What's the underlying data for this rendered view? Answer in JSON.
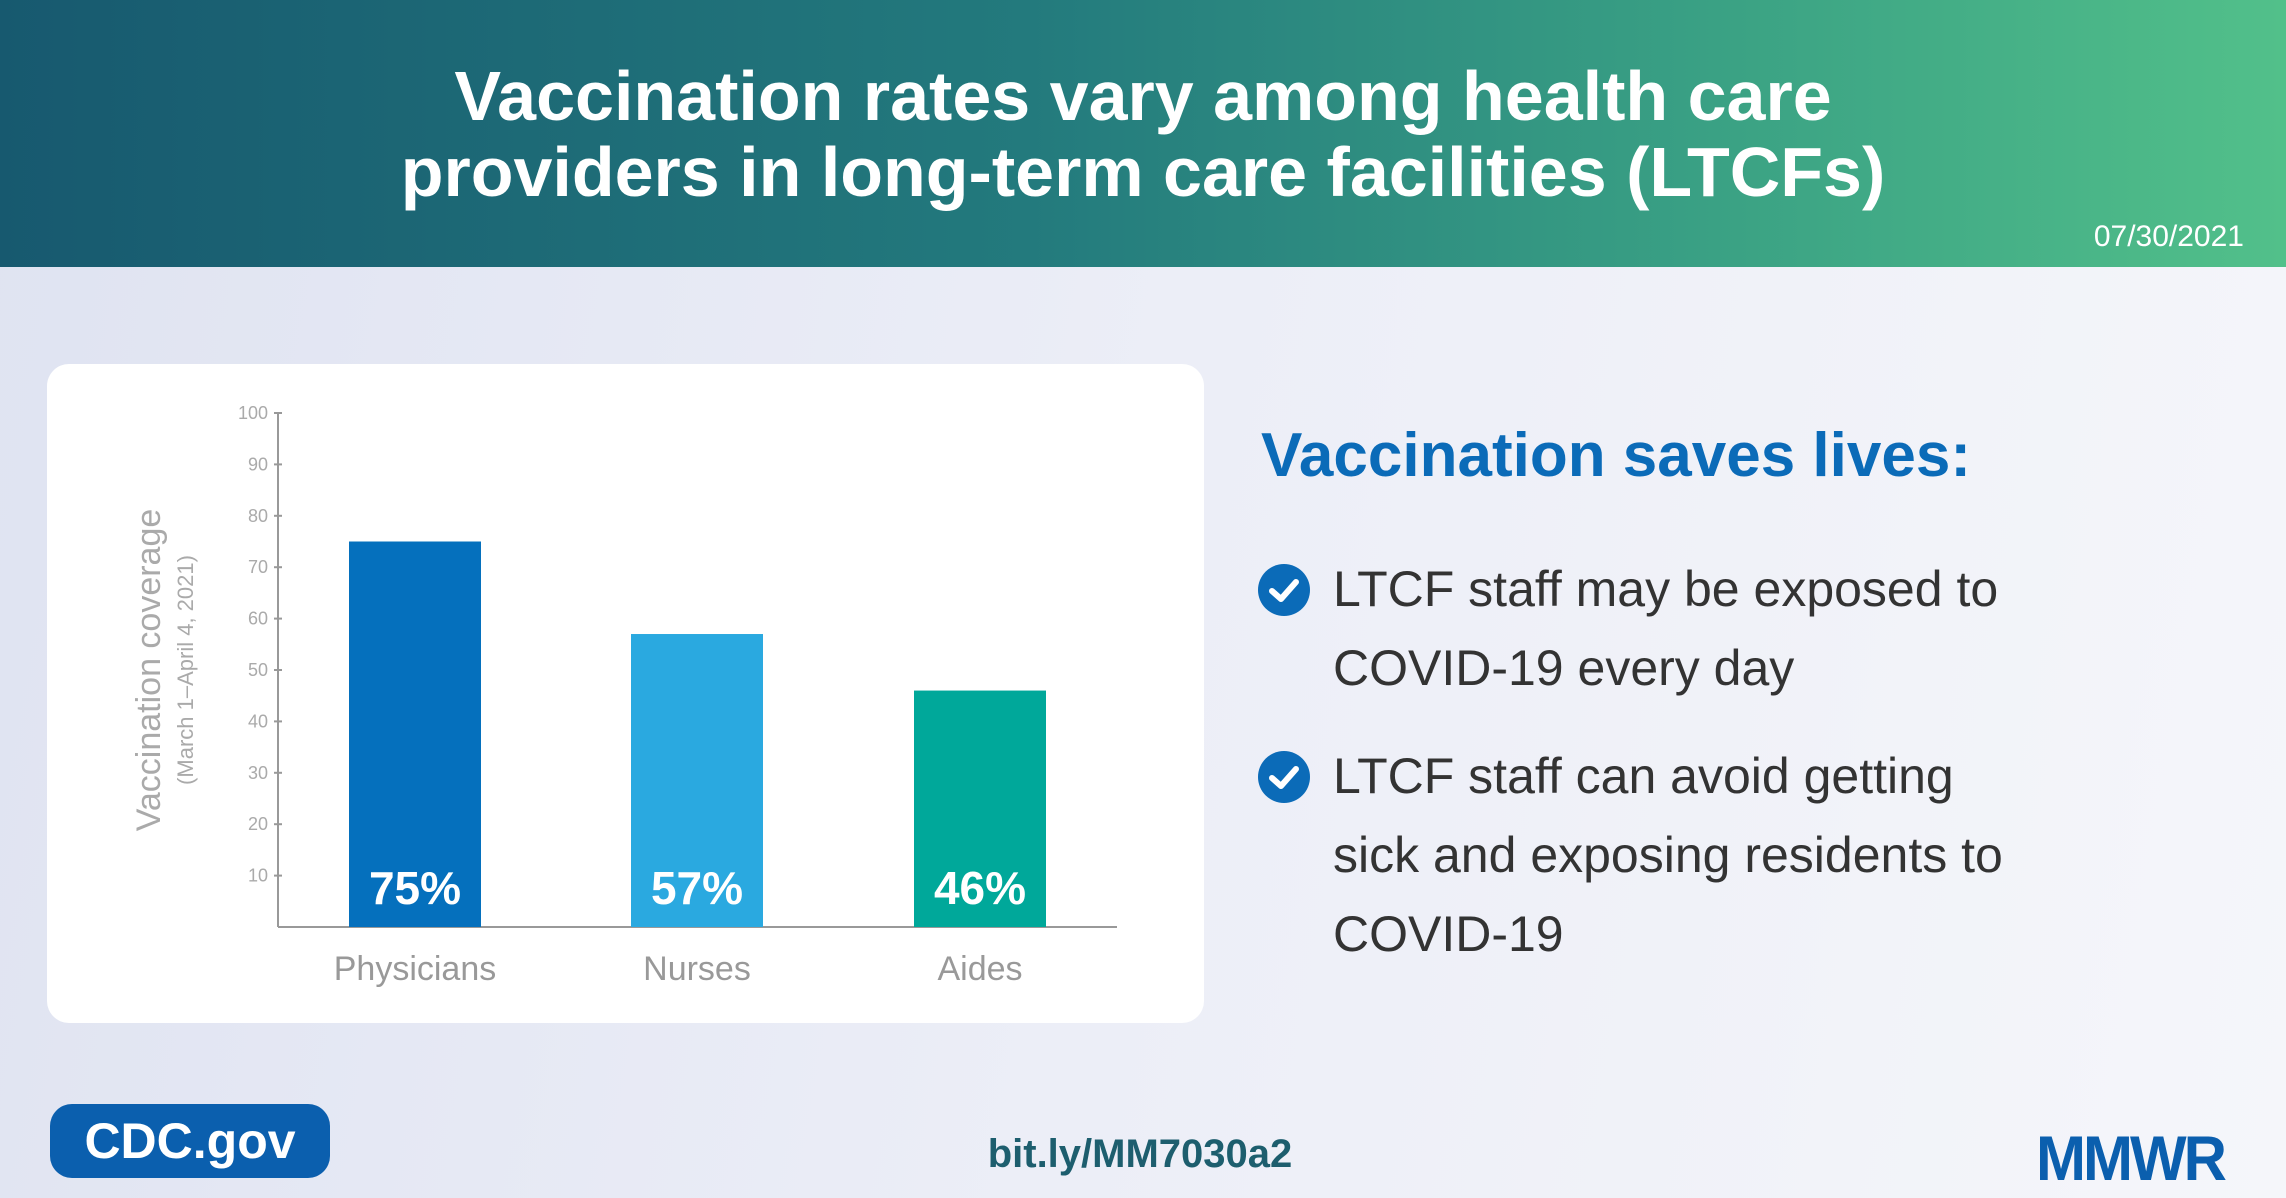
{
  "header": {
    "title_line1": "Vaccination rates vary among health care",
    "title_line2": "providers in long-term care facilities (LTCFs)",
    "date": "07/30/2021"
  },
  "chart_data": {
    "type": "bar",
    "categories": [
      "Physicians",
      "Nurses",
      "Aides"
    ],
    "values": [
      75,
      57,
      46
    ],
    "data_labels": [
      "75%",
      "57%",
      "46%"
    ],
    "colors": [
      "#0570bd",
      "#2aa9e0",
      "#00a89a"
    ],
    "title": "",
    "xlabel": "",
    "ylabel": "Vaccination coverage",
    "ylabel_sub": "(March 1–April 4, 2021)",
    "ylim": [
      0,
      100
    ],
    "yticks": [
      10,
      20,
      30,
      40,
      50,
      60,
      70,
      80,
      90,
      100
    ],
    "grid": false
  },
  "side": {
    "heading": "Vaccination saves lives:",
    "bullets": [
      {
        "lines": [
          "LTCF staff may be exposed to",
          "COVID-19 every day"
        ]
      },
      {
        "lines": [
          "LTCF staff can avoid getting",
          "sick and exposing residents to",
          "COVID-19"
        ]
      }
    ]
  },
  "footer": {
    "cdc": "CDC.gov",
    "link": "bit.ly/MM7030a2",
    "logo": "MMWR"
  },
  "colors": {
    "accent": "#0b6bb8",
    "header_start": "#17596f",
    "header_end": "#52c08a"
  }
}
